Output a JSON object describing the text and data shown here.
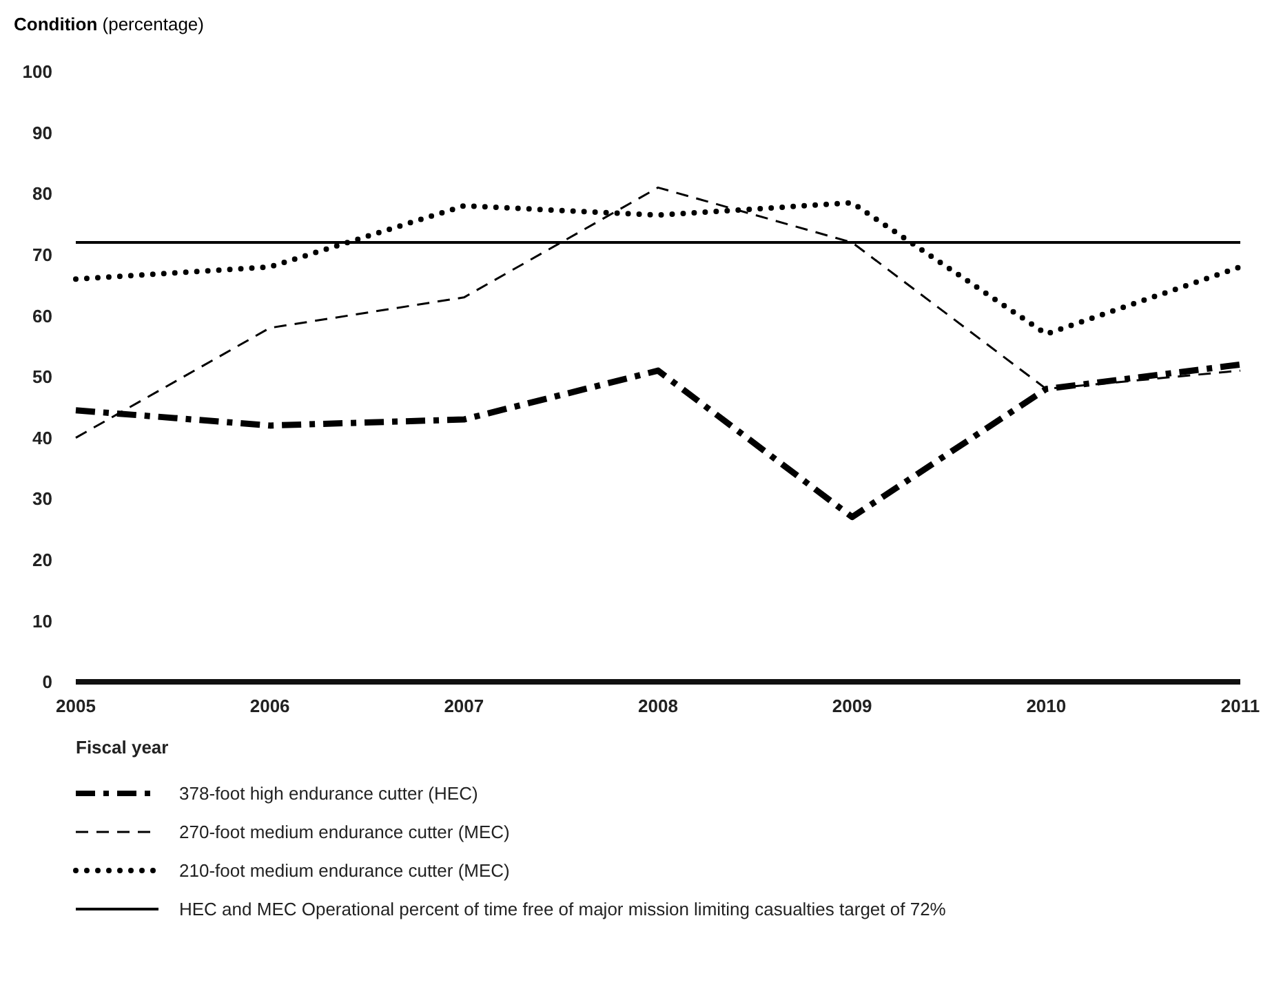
{
  "chart_data": {
    "type": "line",
    "ylabel": "Condition (percentage)",
    "xlabel": "Fiscal year",
    "x": [
      2005,
      2006,
      2007,
      2008,
      2009,
      2010,
      2011
    ],
    "xlim": [
      2005,
      2011
    ],
    "xticks": [
      2005,
      2006,
      2007,
      2008,
      2009,
      2010,
      2011
    ],
    "ylim": [
      0,
      100
    ],
    "yticks": [
      0,
      10,
      20,
      30,
      40,
      50,
      60,
      70,
      80,
      90,
      100
    ],
    "series": [
      {
        "name": "378-foot high endurance cutter (HEC)",
        "color": "#000000",
        "line_style": "dashdot",
        "values": [
          44.5,
          42,
          43,
          51,
          27,
          48,
          52
        ]
      },
      {
        "name": "270-foot medium endurance cutter (MEC)",
        "color": "#000000",
        "line_style": "dashed",
        "values": [
          40,
          58,
          63,
          81,
          72,
          48,
          51
        ]
      },
      {
        "name": "210-foot medium endurance cutter (MEC)",
        "color": "#000000",
        "line_style": "dotted",
        "values": [
          66,
          68,
          78,
          76.5,
          78.5,
          57,
          68
        ]
      }
    ],
    "ref_lines": [
      {
        "axis": "y",
        "value": 72,
        "label": "HEC and MEC Operational percent of time free of major mission limiting casualties target of 72%",
        "color": "#000000",
        "line_style": "solid"
      }
    ],
    "legend": "bottom"
  }
}
